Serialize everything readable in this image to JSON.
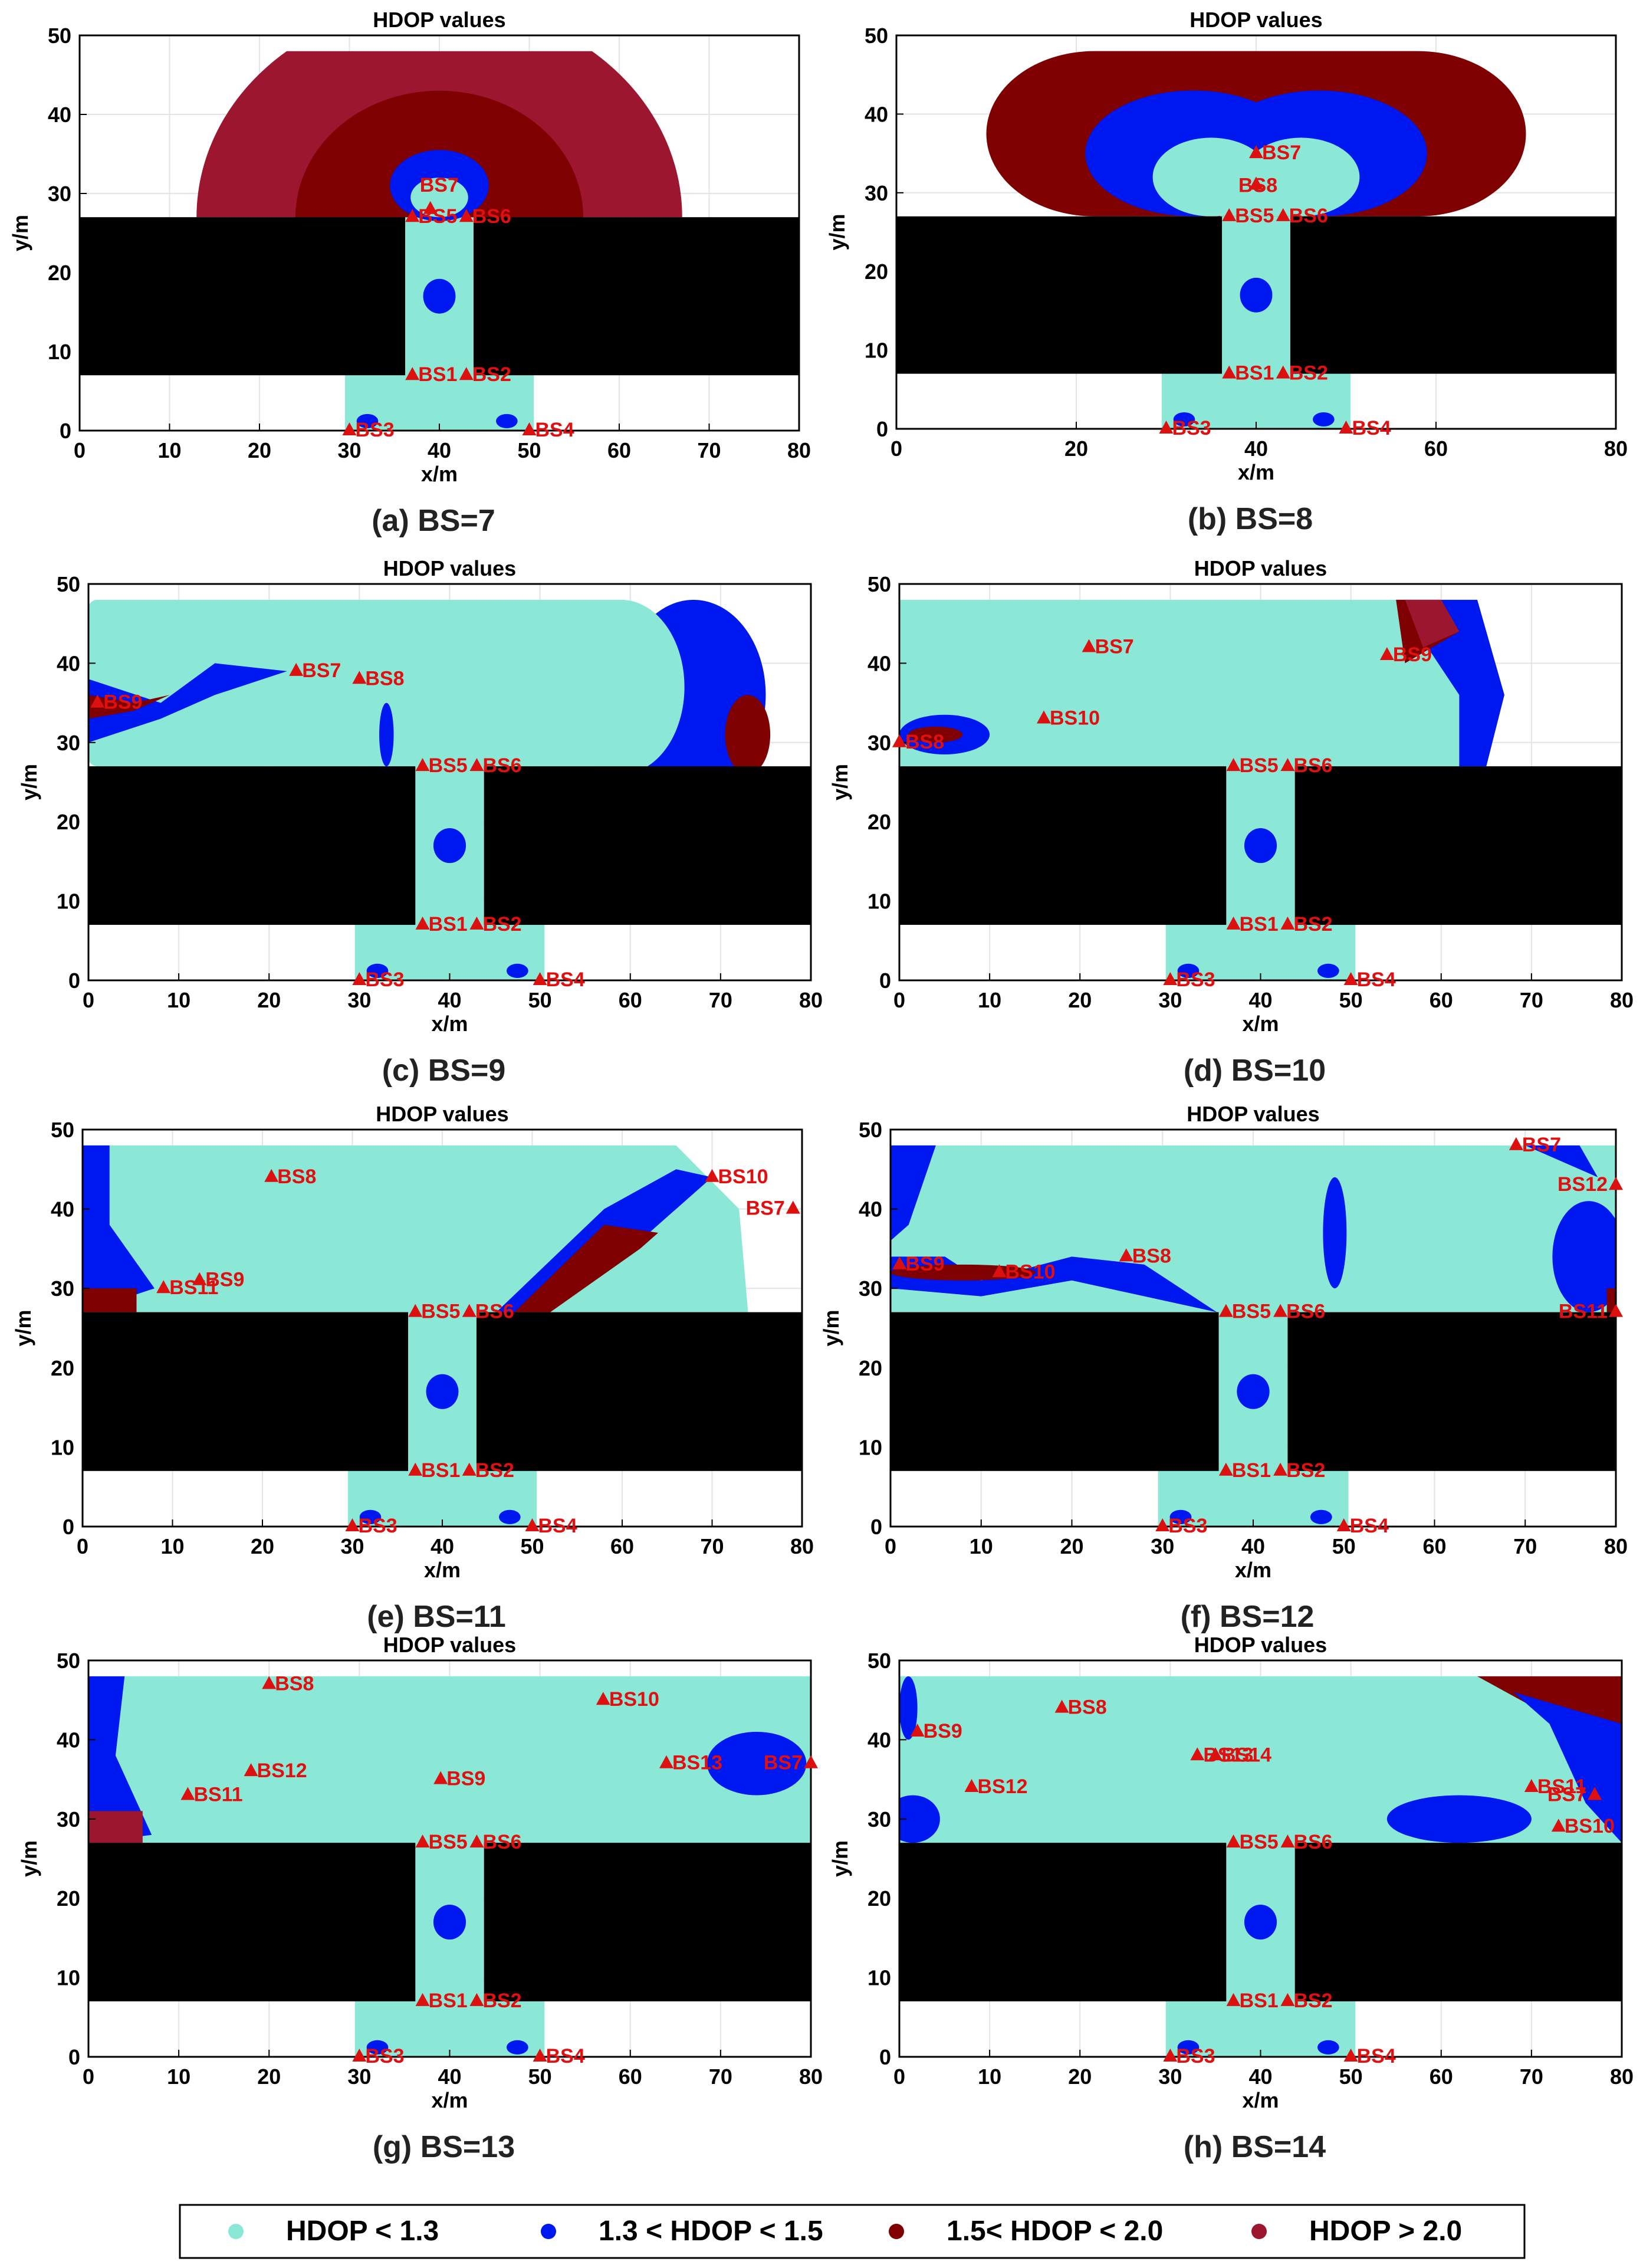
{
  "colors": {
    "lt13": "#8ce8d6",
    "b13_15": "#0018f0",
    "b15_20": "#7e0000",
    "gt20": "#9c1630",
    "wall": "#000000",
    "marker": "#dd1010",
    "bs_label": "#e01010"
  },
  "legend": {
    "placement": "bottom-center",
    "items": [
      {
        "label": "HDOP < 1.3",
        "color": "#8ce8d6"
      },
      {
        "label": "1.3 < HDOP < 1.5",
        "color": "#0018f0"
      },
      {
        "label": "1.5< HDOP < 2.0",
        "color": "#7e0000"
      },
      {
        "label": "HDOP > 2.0",
        "color": "#9c1630"
      }
    ]
  },
  "chart_data": [
    {
      "type": "heatmap",
      "title": "HDOP values",
      "caption": "(a)   BS=7",
      "xlabel": "x/m",
      "ylabel": "y/m",
      "xlim": [
        0,
        80
      ],
      "ylim": [
        0,
        50
      ],
      "xticks": [
        0,
        10,
        20,
        30,
        40,
        50,
        60,
        70,
        80
      ],
      "yticks": [
        0,
        10,
        20,
        30,
        40,
        50
      ],
      "base_stations": [
        {
          "name": "BS1",
          "x": 37,
          "y": 7
        },
        {
          "name": "BS2",
          "x": 43,
          "y": 7
        },
        {
          "name": "BS3",
          "x": 30,
          "y": 0
        },
        {
          "name": "BS4",
          "x": 50,
          "y": 0
        },
        {
          "name": "BS5",
          "x": 37,
          "y": 27
        },
        {
          "name": "BS6",
          "x": 43,
          "y": 27
        },
        {
          "name": "BS7",
          "x": 39,
          "y": 28
        }
      ]
    },
    {
      "type": "heatmap",
      "title": "HDOP values",
      "caption": "(b)   BS=8",
      "xlabel": "x/m",
      "ylabel": "y/m",
      "xlim": [
        0,
        80
      ],
      "ylim": [
        0,
        50
      ],
      "xticks": [
        0,
        20,
        40,
        60,
        80
      ],
      "yticks": [
        0,
        10,
        20,
        30,
        40,
        50
      ],
      "base_stations": [
        {
          "name": "BS1",
          "x": 37,
          "y": 7
        },
        {
          "name": "BS2",
          "x": 43,
          "y": 7
        },
        {
          "name": "BS3",
          "x": 30,
          "y": 0
        },
        {
          "name": "BS4",
          "x": 50,
          "y": 0
        },
        {
          "name": "BS5",
          "x": 37,
          "y": 27
        },
        {
          "name": "BS6",
          "x": 43,
          "y": 27
        },
        {
          "name": "BS7",
          "x": 40,
          "y": 35
        },
        {
          "name": "BS8",
          "x": 40,
          "y": 31
        }
      ]
    },
    {
      "type": "heatmap",
      "title": "HDOP values",
      "caption": "(c)   BS=9",
      "xlabel": "x/m",
      "ylabel": "y/m",
      "xlim": [
        0,
        80
      ],
      "ylim": [
        0,
        50
      ],
      "xticks": [
        0,
        10,
        20,
        30,
        40,
        50,
        60,
        70,
        80
      ],
      "yticks": [
        0,
        10,
        20,
        30,
        40,
        50
      ],
      "base_stations": [
        {
          "name": "BS1",
          "x": 37,
          "y": 7
        },
        {
          "name": "BS2",
          "x": 43,
          "y": 7
        },
        {
          "name": "BS3",
          "x": 30,
          "y": 0
        },
        {
          "name": "BS4",
          "x": 50,
          "y": 0
        },
        {
          "name": "BS5",
          "x": 37,
          "y": 27
        },
        {
          "name": "BS6",
          "x": 43,
          "y": 27
        },
        {
          "name": "BS7",
          "x": 23,
          "y": 39
        },
        {
          "name": "BS8",
          "x": 30,
          "y": 38
        },
        {
          "name": "BS9",
          "x": 1,
          "y": 35
        }
      ]
    },
    {
      "type": "heatmap",
      "title": "HDOP values",
      "caption": "(d)   BS=10",
      "xlabel": "x/m",
      "ylabel": "y/m",
      "xlim": [
        0,
        80
      ],
      "ylim": [
        0,
        50
      ],
      "xticks": [
        0,
        10,
        20,
        30,
        40,
        50,
        60,
        70,
        80
      ],
      "yticks": [
        0,
        10,
        20,
        30,
        40,
        50
      ],
      "base_stations": [
        {
          "name": "BS1",
          "x": 37,
          "y": 7
        },
        {
          "name": "BS2",
          "x": 43,
          "y": 7
        },
        {
          "name": "BS3",
          "x": 30,
          "y": 0
        },
        {
          "name": "BS4",
          "x": 50,
          "y": 0
        },
        {
          "name": "BS5",
          "x": 37,
          "y": 27
        },
        {
          "name": "BS6",
          "x": 43,
          "y": 27
        },
        {
          "name": "BS7",
          "x": 21,
          "y": 42
        },
        {
          "name": "BS8",
          "x": 0,
          "y": 30
        },
        {
          "name": "BS9",
          "x": 54,
          "y": 41
        },
        {
          "name": "BS10",
          "x": 16,
          "y": 33
        }
      ]
    },
    {
      "type": "heatmap",
      "title": "HDOP values",
      "caption": "(e)   BS=11",
      "xlabel": "x/m",
      "ylabel": "y/m",
      "xlim": [
        0,
        80
      ],
      "ylim": [
        0,
        50
      ],
      "xticks": [
        0,
        10,
        20,
        30,
        40,
        50,
        60,
        70,
        80
      ],
      "yticks": [
        0,
        10,
        20,
        30,
        40,
        50
      ],
      "base_stations": [
        {
          "name": "BS1",
          "x": 37,
          "y": 7
        },
        {
          "name": "BS2",
          "x": 43,
          "y": 7
        },
        {
          "name": "BS3",
          "x": 30,
          "y": 0
        },
        {
          "name": "BS4",
          "x": 50,
          "y": 0
        },
        {
          "name": "BS5",
          "x": 37,
          "y": 27
        },
        {
          "name": "BS6",
          "x": 43,
          "y": 27
        },
        {
          "name": "BS7",
          "x": 79,
          "y": 40
        },
        {
          "name": "BS8",
          "x": 21,
          "y": 44
        },
        {
          "name": "BS9",
          "x": 13,
          "y": 31
        },
        {
          "name": "BS10",
          "x": 70,
          "y": 44
        },
        {
          "name": "BS11",
          "x": 9,
          "y": 30
        }
      ]
    },
    {
      "type": "heatmap",
      "title": "HDOP values",
      "caption": "(f)   BS=12",
      "xlabel": "x/m",
      "ylabel": "y/m",
      "xlim": [
        0,
        80
      ],
      "ylim": [
        0,
        50
      ],
      "xticks": [
        0,
        10,
        20,
        30,
        40,
        50,
        60,
        70,
        80
      ],
      "yticks": [
        0,
        10,
        20,
        30,
        40,
        50
      ],
      "base_stations": [
        {
          "name": "BS1",
          "x": 37,
          "y": 7
        },
        {
          "name": "BS2",
          "x": 43,
          "y": 7
        },
        {
          "name": "BS3",
          "x": 30,
          "y": 0
        },
        {
          "name": "BS4",
          "x": 50,
          "y": 0
        },
        {
          "name": "BS5",
          "x": 37,
          "y": 27
        },
        {
          "name": "BS6",
          "x": 43,
          "y": 27
        },
        {
          "name": "BS7",
          "x": 69,
          "y": 48
        },
        {
          "name": "BS8",
          "x": 26,
          "y": 34
        },
        {
          "name": "BS9",
          "x": 1,
          "y": 33
        },
        {
          "name": "BS10",
          "x": 12,
          "y": 32
        },
        {
          "name": "BS11",
          "x": 80,
          "y": 27
        },
        {
          "name": "BS12",
          "x": 80,
          "y": 43
        }
      ]
    },
    {
      "type": "heatmap",
      "title": "HDOP values",
      "caption": "(g)   BS=13",
      "xlabel": "x/m",
      "ylabel": "y/m",
      "xlim": [
        0,
        80
      ],
      "ylim": [
        0,
        50
      ],
      "xticks": [
        0,
        10,
        20,
        30,
        40,
        50,
        60,
        70,
        80
      ],
      "yticks": [
        0,
        10,
        20,
        30,
        40,
        50
      ],
      "base_stations": [
        {
          "name": "BS1",
          "x": 37,
          "y": 7
        },
        {
          "name": "BS2",
          "x": 43,
          "y": 7
        },
        {
          "name": "BS3",
          "x": 30,
          "y": 0
        },
        {
          "name": "BS4",
          "x": 50,
          "y": 0
        },
        {
          "name": "BS5",
          "x": 37,
          "y": 27
        },
        {
          "name": "BS6",
          "x": 43,
          "y": 27
        },
        {
          "name": "BS7",
          "x": 80,
          "y": 37
        },
        {
          "name": "BS8",
          "x": 20,
          "y": 47
        },
        {
          "name": "BS9",
          "x": 39,
          "y": 35
        },
        {
          "name": "BS10",
          "x": 57,
          "y": 45
        },
        {
          "name": "BS11",
          "x": 11,
          "y": 33
        },
        {
          "name": "BS12",
          "x": 18,
          "y": 36
        },
        {
          "name": "BS13",
          "x": 64,
          "y": 37
        }
      ]
    },
    {
      "type": "heatmap",
      "title": "HDOP values",
      "caption": "(h)   BS=14",
      "xlabel": "x/m",
      "ylabel": "y/m",
      "xlim": [
        0,
        80
      ],
      "ylim": [
        0,
        50
      ],
      "xticks": [
        0,
        10,
        20,
        30,
        40,
        50,
        60,
        70,
        80
      ],
      "yticks": [
        0,
        10,
        20,
        30,
        40,
        50
      ],
      "base_stations": [
        {
          "name": "BS1",
          "x": 37,
          "y": 7
        },
        {
          "name": "BS2",
          "x": 43,
          "y": 7
        },
        {
          "name": "BS3",
          "x": 30,
          "y": 0
        },
        {
          "name": "BS4",
          "x": 50,
          "y": 0
        },
        {
          "name": "BS5",
          "x": 37,
          "y": 27
        },
        {
          "name": "BS6",
          "x": 43,
          "y": 27
        },
        {
          "name": "BS7",
          "x": 77,
          "y": 33
        },
        {
          "name": "BS8",
          "x": 18,
          "y": 44
        },
        {
          "name": "BS9",
          "x": 2,
          "y": 41
        },
        {
          "name": "BS10",
          "x": 73,
          "y": 29
        },
        {
          "name": "BS11",
          "x": 70,
          "y": 34
        },
        {
          "name": "BS12",
          "x": 8,
          "y": 34
        },
        {
          "name": "BS13",
          "x": 33,
          "y": 38
        },
        {
          "name": "BS14",
          "x": 35,
          "y": 38
        }
      ]
    }
  ]
}
